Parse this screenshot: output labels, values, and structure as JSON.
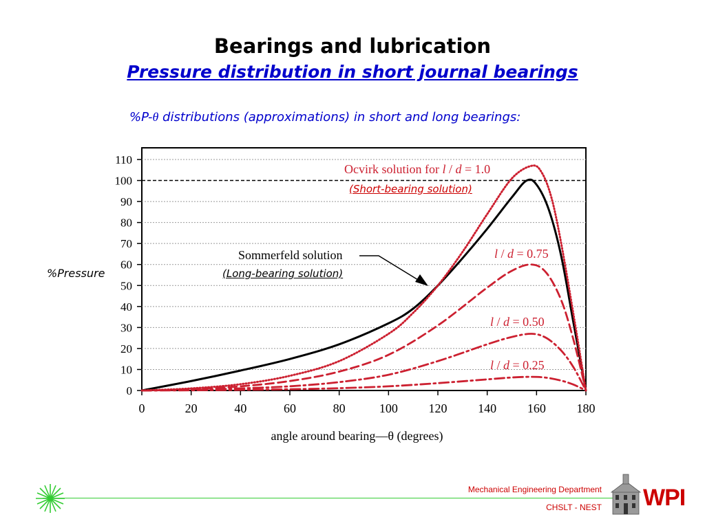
{
  "slide": {
    "title": "Bearings and lubrication",
    "subtitle": "Pressure distribution in short journal bearings",
    "caption_pre": "%P-",
    "caption_theta": "θ",
    "caption_post": " distributions (approximations) in short and long bearings:",
    "y_side_label": "%Pressure",
    "short_bearing_note": "(Short-bearing solution)",
    "long_bearing_note": "(Long-bearing solution)"
  },
  "footer": {
    "department": "Mechanical Engineering Department",
    "lab": "CHSLT - NEST",
    "logo_text": "WPI",
    "line_color": "#33cc33",
    "text_color": "#cc0000"
  },
  "colors": {
    "accent_red": "#cc2030",
    "title_blue": "#0000cc"
  },
  "chart_data": {
    "type": "line",
    "xlabel": "angle around bearing—θ  (degrees)",
    "xlim": [
      0,
      180
    ],
    "ylim": [
      0,
      110
    ],
    "xticks": [
      0,
      20,
      40,
      60,
      80,
      100,
      120,
      140,
      160,
      180
    ],
    "yticks": [
      0,
      10,
      20,
      30,
      40,
      50,
      60,
      70,
      80,
      90,
      100,
      110
    ],
    "grid": "horizontal dotted",
    "reference_line": 100,
    "annotations": [
      {
        "text": "Ocvirk solution for l / d = 1.0",
        "series": "Ocvirk solution for l / d = 1.0"
      },
      {
        "text": "Sommerfeld solution",
        "series": "Sommerfeld solution"
      },
      {
        "text": "l / d = 0.75",
        "series": "l / d = 0.75"
      },
      {
        "text": "l / d = 0.50",
        "series": "l / d = 0.50"
      },
      {
        "text": "l / d = 0.25",
        "series": "l / d = 0.25"
      }
    ],
    "series": [
      {
        "name": "Sommerfeld solution",
        "color": "#000000",
        "style": "solid",
        "x": [
          0,
          20,
          40,
          60,
          80,
          100,
          110,
          120,
          130,
          140,
          150,
          156,
          160,
          165,
          170,
          175,
          180
        ],
        "y": [
          0,
          4.5,
          9.5,
          15,
          22,
          32,
          39,
          50,
          63,
          77,
          92,
          100,
          98,
          86,
          64,
          32,
          0
        ]
      },
      {
        "name": "Ocvirk solution for l / d = 1.0",
        "color": "#cc2030",
        "style": "dotted",
        "x": [
          0,
          20,
          40,
          60,
          80,
          100,
          110,
          120,
          130,
          140,
          150,
          158,
          162,
          166,
          170,
          175,
          180
        ],
        "y": [
          0,
          1,
          3,
          7,
          14,
          27,
          37,
          50,
          66,
          84,
          101,
          107,
          104,
          92,
          70,
          36,
          0
        ]
      },
      {
        "name": "l / d = 0.75",
        "color": "#cc2030",
        "style": "dashed",
        "x": [
          0,
          20,
          40,
          60,
          80,
          100,
          120,
          140,
          150,
          158,
          164,
          170,
          175,
          180
        ],
        "y": [
          0,
          0.5,
          2,
          4.5,
          9,
          17,
          31,
          49,
          57,
          60,
          56,
          43,
          24,
          0
        ]
      },
      {
        "name": "l / d = 0.50",
        "color": "#cc2030",
        "style": "dashdot",
        "x": [
          0,
          20,
          40,
          60,
          80,
          100,
          120,
          140,
          150,
          158,
          164,
          170,
          175,
          180
        ],
        "y": [
          0,
          0.3,
          1,
          2,
          4,
          7.5,
          14,
          22,
          25.5,
          27,
          25,
          19,
          11,
          0
        ]
      },
      {
        "name": "l / d = 0.25",
        "color": "#cc2030",
        "style": "dashdot",
        "x": [
          0,
          20,
          40,
          60,
          80,
          100,
          120,
          140,
          150,
          158,
          164,
          170,
          175,
          180
        ],
        "y": [
          0,
          0.1,
          0.3,
          0.6,
          1.1,
          2,
          3.5,
          5.3,
          6.2,
          6.5,
          6.1,
          4.7,
          2.8,
          0
        ]
      }
    ]
  }
}
